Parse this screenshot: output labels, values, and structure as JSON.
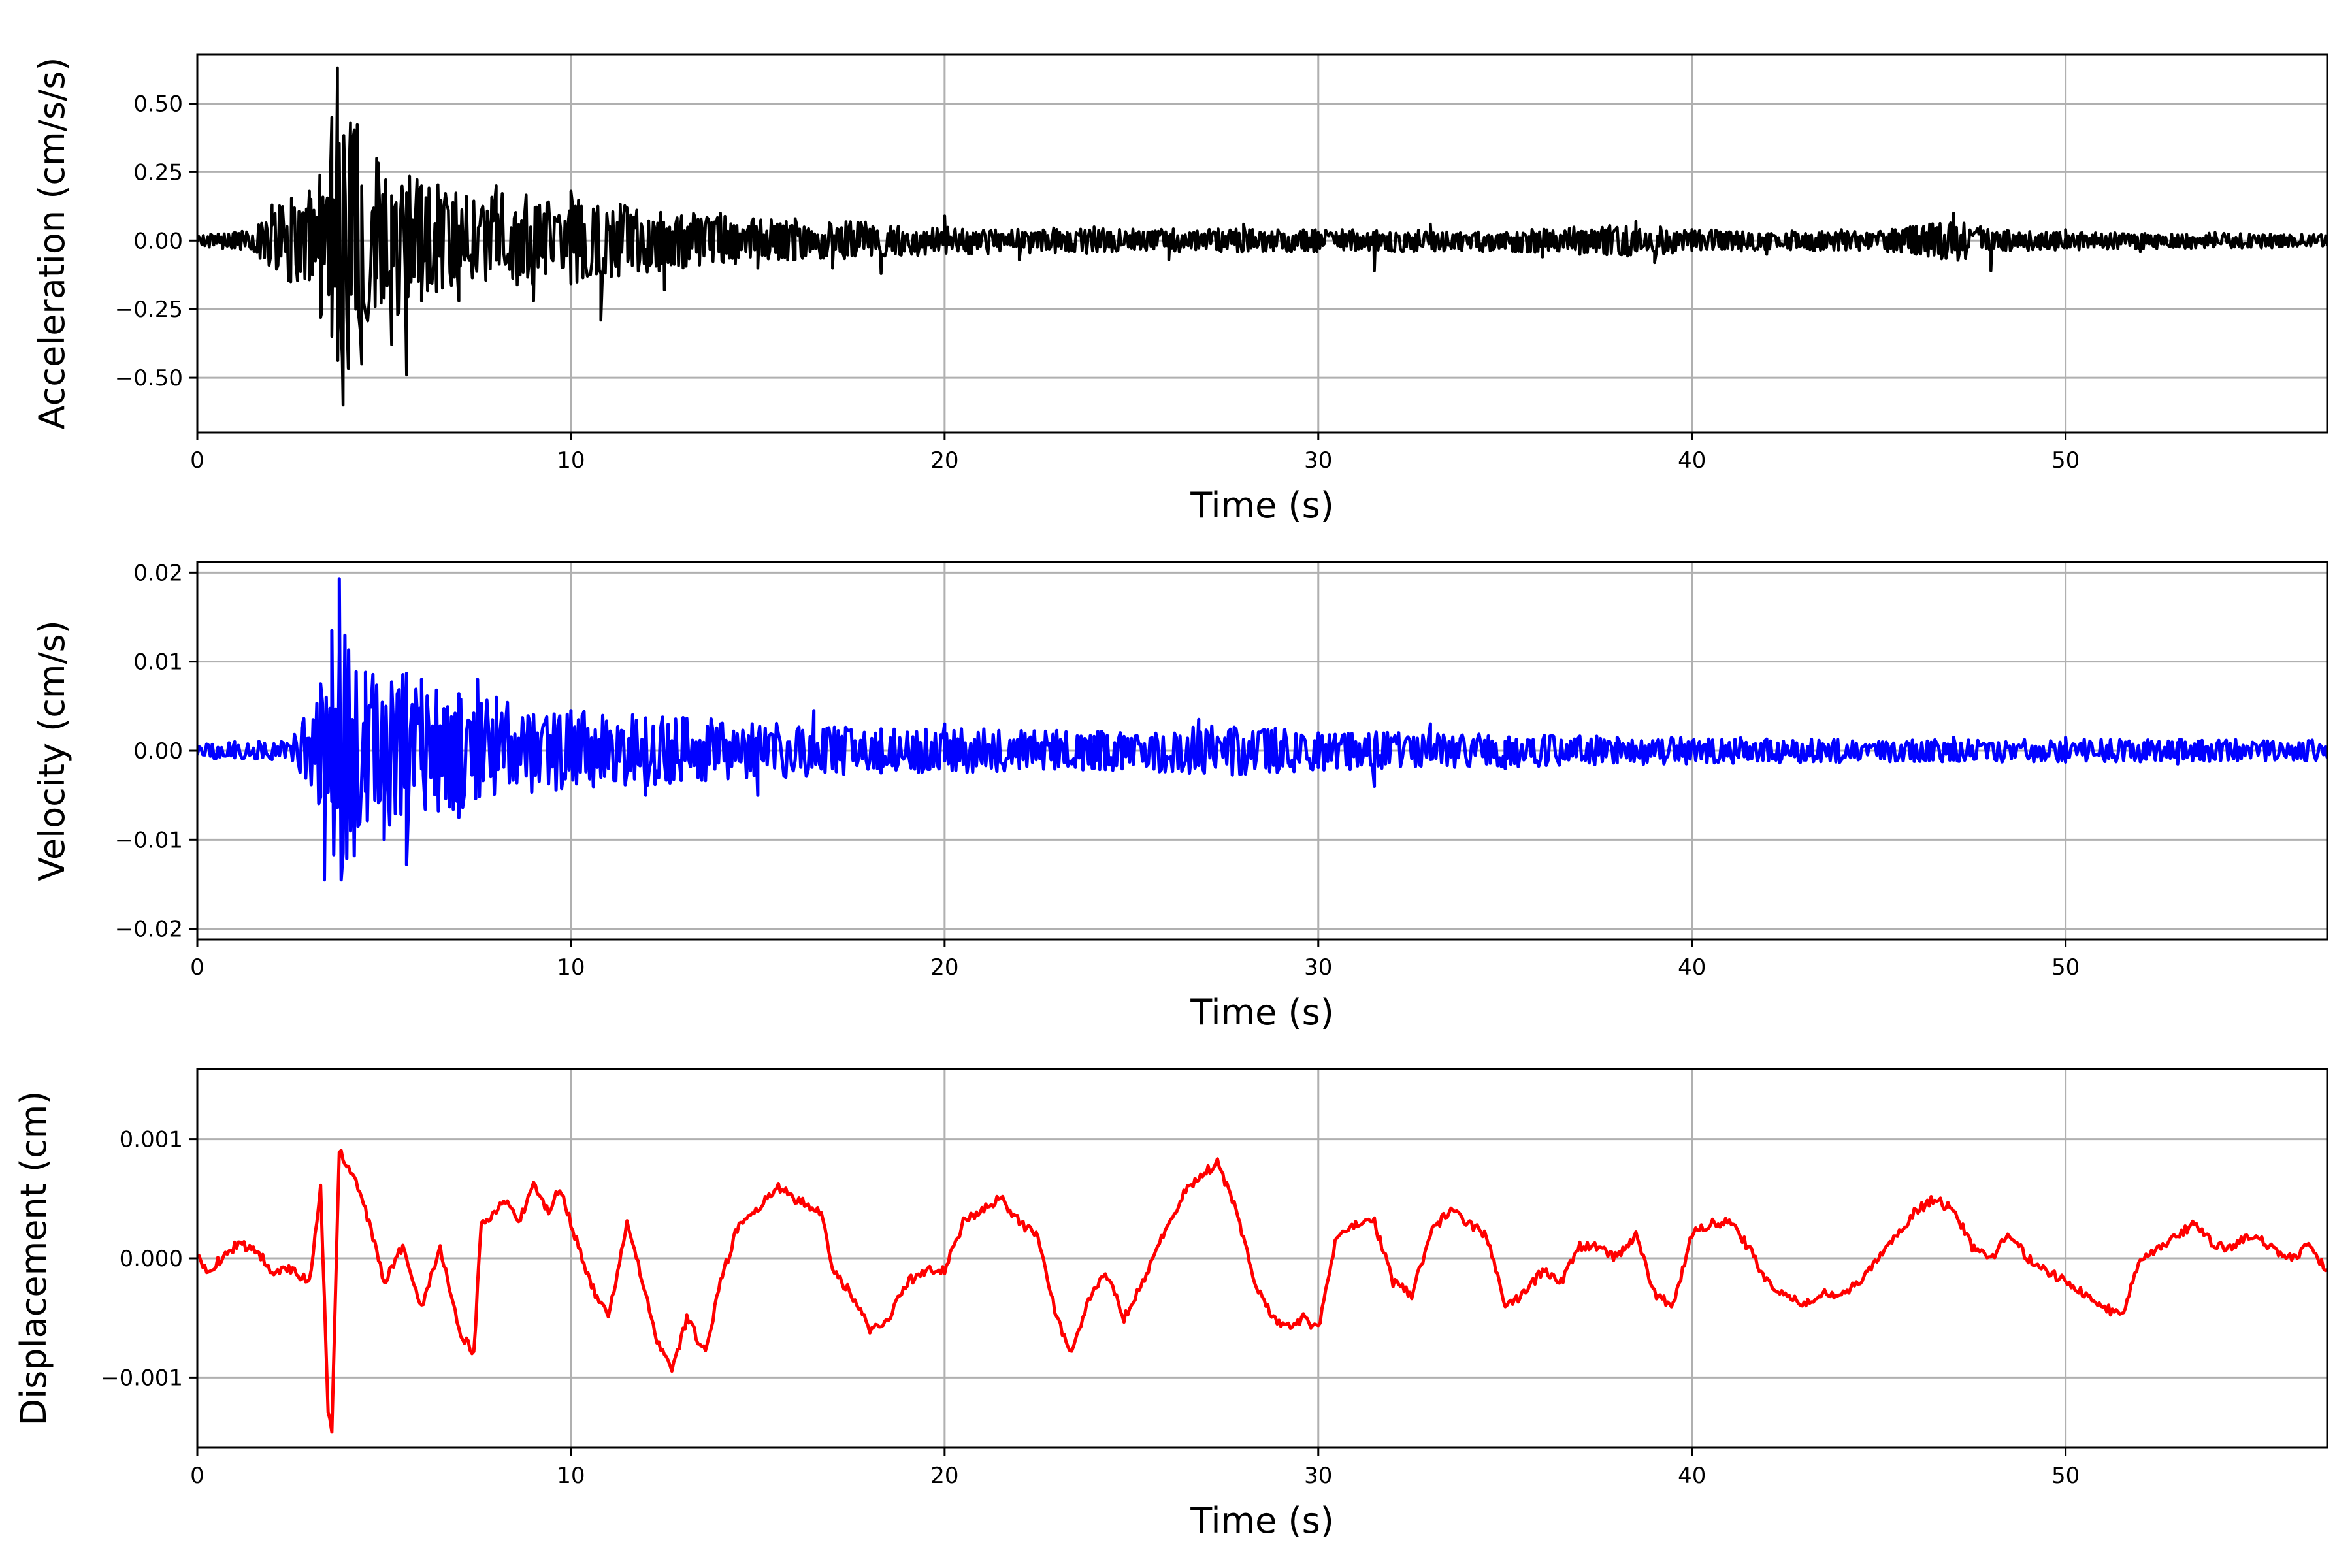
{
  "chart_data": [
    {
      "type": "line",
      "xlabel": "Time (s)",
      "ylabel": "Acceleration (cm/s/s)",
      "xlim": [
        0,
        57
      ],
      "ylim": [
        -0.7,
        0.68
      ],
      "xticks": [
        "0",
        "10",
        "20",
        "30",
        "40",
        "50"
      ],
      "yticks": [
        "−0.50",
        "−0.25",
        "0.00",
        "0.25",
        "0.50"
      ],
      "ytick_values": [
        -0.5,
        -0.25,
        0.0,
        0.25,
        0.5
      ],
      "grid": true,
      "color": "#000000",
      "x": [
        0,
        1,
        2,
        2.5,
        3,
        3.3,
        3.6,
        3.75,
        3.9,
        4.1,
        4.4,
        4.8,
        5.2,
        5.6,
        6,
        7,
        8,
        9,
        10,
        10.8,
        11.5,
        12.5,
        14,
        15,
        16,
        17,
        18.3,
        20,
        22,
        24,
        26,
        28,
        30,
        31.5,
        33,
        36,
        38.5,
        39,
        40,
        42,
        44,
        46,
        47,
        48,
        50,
        52,
        54,
        57
      ],
      "values": [
        0.01,
        0.03,
        0.13,
        -0.15,
        0.18,
        -0.28,
        0.45,
        0.63,
        -0.6,
        0.43,
        -0.45,
        0.3,
        -0.38,
        -0.49,
        0.2,
        -0.22,
        0.2,
        -0.22,
        0.18,
        -0.29,
        0.12,
        -0.18,
        0.1,
        -0.1,
        0.08,
        -0.1,
        -0.12,
        0.09,
        -0.07,
        0.05,
        -0.07,
        0.06,
        0.03,
        -0.11,
        0.06,
        -0.06,
        0.07,
        -0.08,
        0.04,
        -0.05,
        0.04,
        -0.05,
        0.1,
        -0.11,
        0.04,
        -0.04,
        0.03,
        -0.02
      ],
      "envelope": {
        "t": [
          0,
          1.5,
          2,
          3.2,
          3.8,
          4.5,
          5.5,
          6.5,
          8,
          10,
          12,
          14,
          16,
          18,
          20,
          25,
          30,
          35,
          38.5,
          40,
          45,
          47,
          48,
          52,
          57
        ],
        "amp": [
          0.02,
          0.04,
          0.12,
          0.22,
          0.55,
          0.38,
          0.28,
          0.2,
          0.18,
          0.16,
          0.12,
          0.09,
          0.07,
          0.07,
          0.05,
          0.045,
          0.04,
          0.04,
          0.06,
          0.04,
          0.035,
          0.08,
          0.04,
          0.03,
          0.025
        ]
      },
      "sample_step": 0.04
    },
    {
      "type": "line",
      "xlabel": "Time (s)",
      "ylabel": "Velocity (cm/s)",
      "xlim": [
        0,
        57
      ],
      "ylim": [
        -0.0212,
        0.0212
      ],
      "xticks": [
        "0",
        "10",
        "20",
        "30",
        "40",
        "50"
      ],
      "yticks": [
        "−0.02",
        "−0.01",
        "0.00",
        "0.01",
        "0.02"
      ],
      "ytick_values": [
        -0.02,
        -0.01,
        0.0,
        0.01,
        0.02
      ],
      "grid": true,
      "color": "#0000ff",
      "x": [
        0,
        1,
        2,
        3,
        3.3,
        3.4,
        3.6,
        3.8,
        4.1,
        4.5,
        5,
        5.6,
        6,
        7,
        7.5,
        8,
        10,
        12,
        14,
        15,
        16.5,
        18.3,
        20,
        22,
        24,
        26.8,
        30,
        31.5,
        33,
        35,
        38,
        40,
        45,
        47,
        50,
        53,
        57
      ],
      "values": [
        -0.0005,
        0.001,
        -0.001,
        0.001,
        0.0075,
        -0.0145,
        0.0135,
        0.0193,
        -0.009,
        0.0088,
        -0.01,
        -0.0128,
        0.008,
        -0.0075,
        0.008,
        0.006,
        0.0045,
        -0.005,
        0.003,
        -0.005,
        0.0045,
        -0.0025,
        0.003,
        -0.002,
        -0.002,
        0.0035,
        0.002,
        -0.004,
        0.003,
        -0.002,
        0.0015,
        0.001,
        0.001,
        0.0015,
        0.0015,
        -0.0015,
        0.0005
      ],
      "envelope": {
        "t": [
          0,
          2.5,
          3.2,
          3.8,
          4.5,
          5.5,
          6.5,
          8,
          10,
          12,
          14,
          16,
          18,
          20,
          25,
          27,
          30,
          35,
          40,
          45,
          50,
          57
        ],
        "amp": [
          0.0008,
          0.0012,
          0.006,
          0.016,
          0.009,
          0.009,
          0.007,
          0.006,
          0.0045,
          0.004,
          0.0035,
          0.003,
          0.0025,
          0.0025,
          0.0022,
          0.003,
          0.0022,
          0.0018,
          0.0015,
          0.0013,
          0.0013,
          0.0012
        ]
      },
      "sample_step": 0.05
    },
    {
      "type": "line",
      "xlabel": "Time (s)",
      "ylabel": "Displacement (cm)",
      "xlim": [
        0,
        57
      ],
      "ylim": [
        -0.00159,
        0.00159
      ],
      "xticks": [
        "0",
        "10",
        "20",
        "30",
        "40",
        "50"
      ],
      "yticks": [
        "−0.001",
        "0.000",
        "0.001"
      ],
      "ytick_values": [
        -0.001,
        0.0,
        0.001
      ],
      "grid": true,
      "color": "#ff0000",
      "x": [
        0,
        0.3,
        1,
        1.5,
        2,
        2.5,
        3,
        3.3,
        3.5,
        3.6,
        3.8,
        4.2,
        4.6,
        5,
        5.5,
        6,
        6.5,
        7,
        7.4,
        7.6,
        8,
        8.3,
        8.6,
        9,
        9.4,
        9.7,
        10,
        10.5,
        11,
        11.5,
        12,
        12.3,
        12.7,
        13.1,
        13.6,
        14,
        14.5,
        15,
        15.5,
        16,
        16.7,
        17,
        17.5,
        18,
        18.5,
        19,
        19.5,
        20,
        20.5,
        21,
        21.5,
        22,
        22.5,
        23,
        23.4,
        23.8,
        24.3,
        24.8,
        25.3,
        26,
        26.5,
        26.9,
        27.3,
        27.8,
        28.3,
        28.8,
        29.3,
        29.6,
        30,
        30.5,
        31,
        31.5,
        32,
        32.5,
        33,
        33.5,
        34,
        34.5,
        35,
        35.5,
        36,
        36.5,
        37,
        37.5,
        38,
        38.5,
        39,
        39.5,
        40,
        40.5,
        41,
        41.5,
        42,
        42.5,
        43,
        43.5,
        44,
        44.5,
        45,
        45.5,
        46,
        46.5,
        47,
        47.5,
        48,
        48.5,
        49,
        49.5,
        50,
        50.5,
        51,
        51.5,
        52,
        52.5,
        53,
        53.5,
        54,
        54.5,
        55,
        55.5,
        56,
        56.5,
        57
      ],
      "values": [
        0.0,
        -0.0001,
        0.0001,
        0.0001,
        -0.0001,
        -0.0001,
        -0.0002,
        0.0006,
        -0.0013,
        -0.00145,
        0.0009,
        0.0007,
        0.0003,
        -0.0002,
        0.0001,
        -0.0004,
        0.0001,
        -0.0006,
        -0.0008,
        0.0003,
        0.0004,
        0.0005,
        0.0003,
        0.0006,
        0.0004,
        0.0006,
        0.0003,
        -0.0002,
        -0.0005,
        0.0003,
        -0.0003,
        -0.0007,
        -0.00095,
        -0.0005,
        -0.0008,
        -0.0002,
        0.0003,
        0.0004,
        0.0006,
        0.0005,
        0.0004,
        -0.0001,
        -0.0003,
        -0.0006,
        -0.0005,
        -0.0002,
        -0.0001,
        -0.0001,
        0.0003,
        0.0004,
        0.0005,
        0.0003,
        0.0002,
        -0.0005,
        -0.0008,
        -0.0004,
        -0.0001,
        -0.0005,
        -0.0002,
        0.0003,
        0.0006,
        0.0007,
        0.0008,
        0.0004,
        -0.0002,
        -0.0005,
        -0.0006,
        -0.0005,
        -0.0006,
        0.0002,
        0.0003,
        0.0003,
        -0.0002,
        -0.0003,
        0.0002,
        0.0004,
        0.0003,
        0.0002,
        -0.0004,
        -0.0003,
        -0.0001,
        -0.0002,
        0.0001,
        0.0001,
        0.0,
        0.0002,
        -0.0003,
        -0.0004,
        0.0002,
        0.0003,
        0.0003,
        0.0001,
        -0.0002,
        -0.0003,
        -0.0004,
        -0.0003,
        -0.0003,
        -0.0002,
        0.0,
        0.0002,
        0.0004,
        0.0005,
        0.0004,
        0.0001,
        0.0,
        0.0002,
        0.0,
        -0.0001,
        -0.0002,
        -0.0003,
        -0.0004,
        -0.0005,
        0.0,
        0.0001,
        0.0002,
        0.0003,
        0.0001,
        0.0001,
        0.0002,
        0.0001,
        0.0,
        0.0001,
        -0.0001
      ]
    }
  ]
}
